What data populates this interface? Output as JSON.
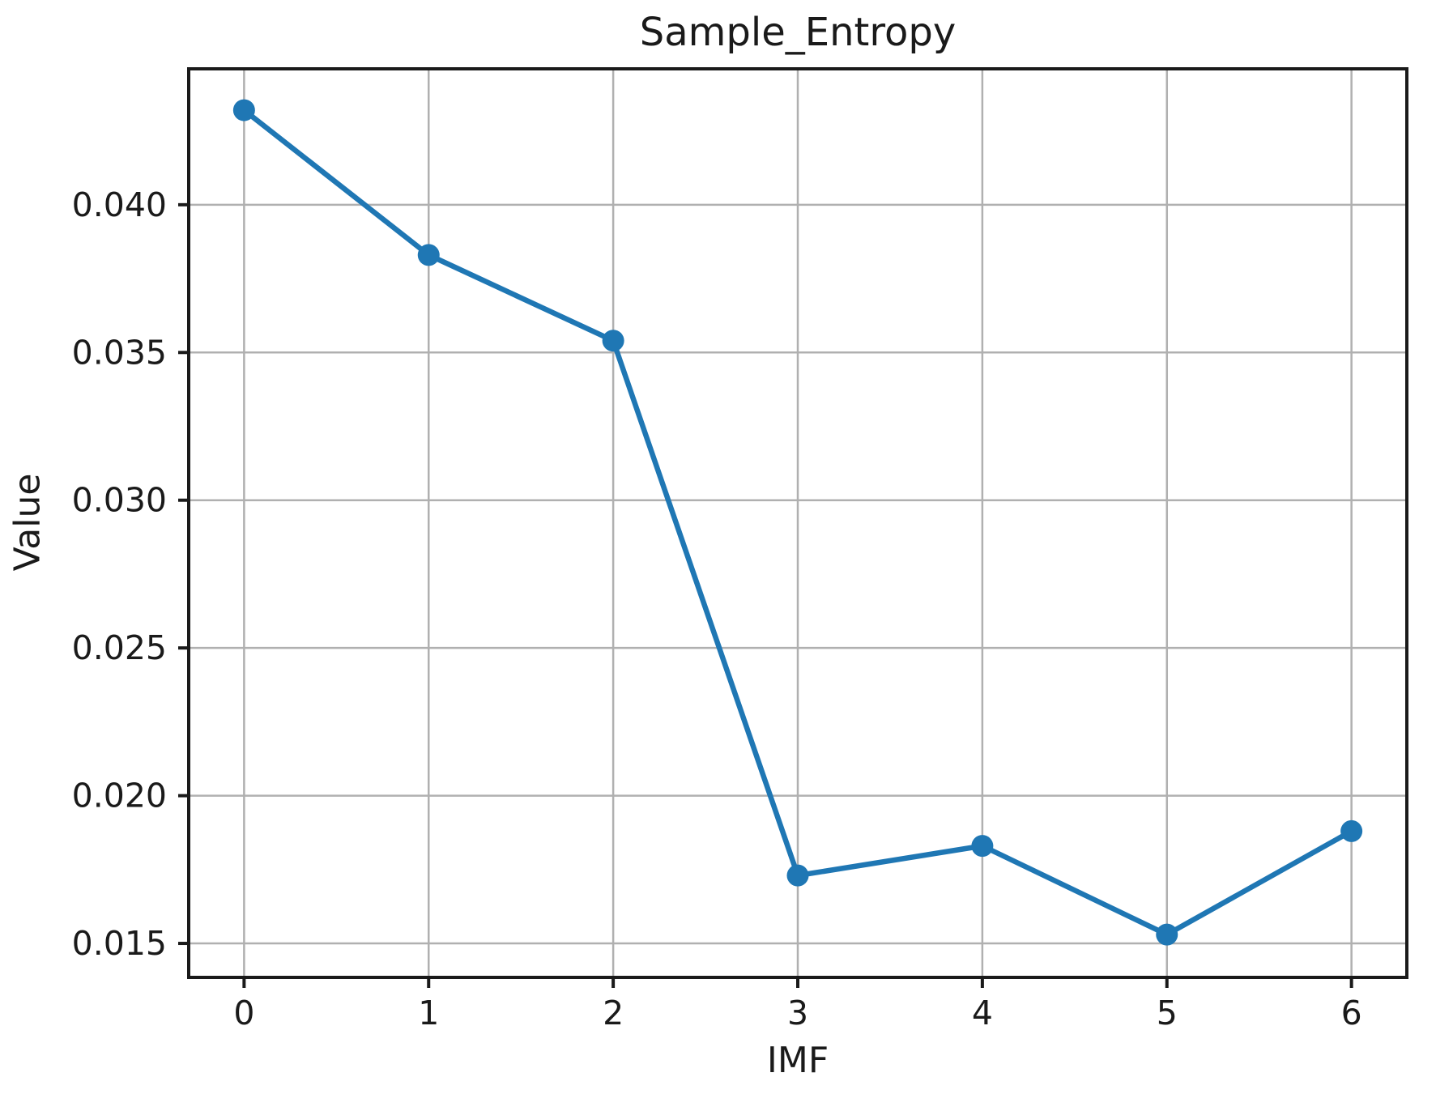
{
  "figure": {
    "background": "#ffffff"
  },
  "chart_data": {
    "type": "line",
    "title": "Sample_Entropy",
    "xlabel": "IMF",
    "ylabel": "Value",
    "x": [
      0,
      1,
      2,
      3,
      4,
      5,
      6
    ],
    "series": [
      {
        "name": "Sample_Entropy",
        "values": [
          0.0432,
          0.0383,
          0.0354,
          0.0173,
          0.0183,
          0.0153,
          0.0188
        ]
      }
    ],
    "xlim": [
      -0.3,
      6.3
    ],
    "ylim": [
      0.01385,
      0.0446
    ],
    "xticks": {
      "values": [
        0,
        1,
        2,
        3,
        4,
        5,
        6
      ],
      "labels": [
        "0",
        "1",
        "2",
        "3",
        "4",
        "5",
        "6"
      ]
    },
    "yticks": {
      "values": [
        0.015,
        0.02,
        0.025,
        0.03,
        0.035,
        0.04
      ],
      "labels": [
        "0.015",
        "0.020",
        "0.025",
        "0.030",
        "0.035",
        "0.040"
      ]
    },
    "grid": true,
    "legend": false,
    "marker": "circle",
    "line_color": "#1f77b4",
    "marker_color": "#1f77b4",
    "grid_color": "#b0b0b0",
    "spine_color": "#1a1a1a",
    "tick_color": "#1a1a1a",
    "text_color": "#1a1a1a"
  }
}
